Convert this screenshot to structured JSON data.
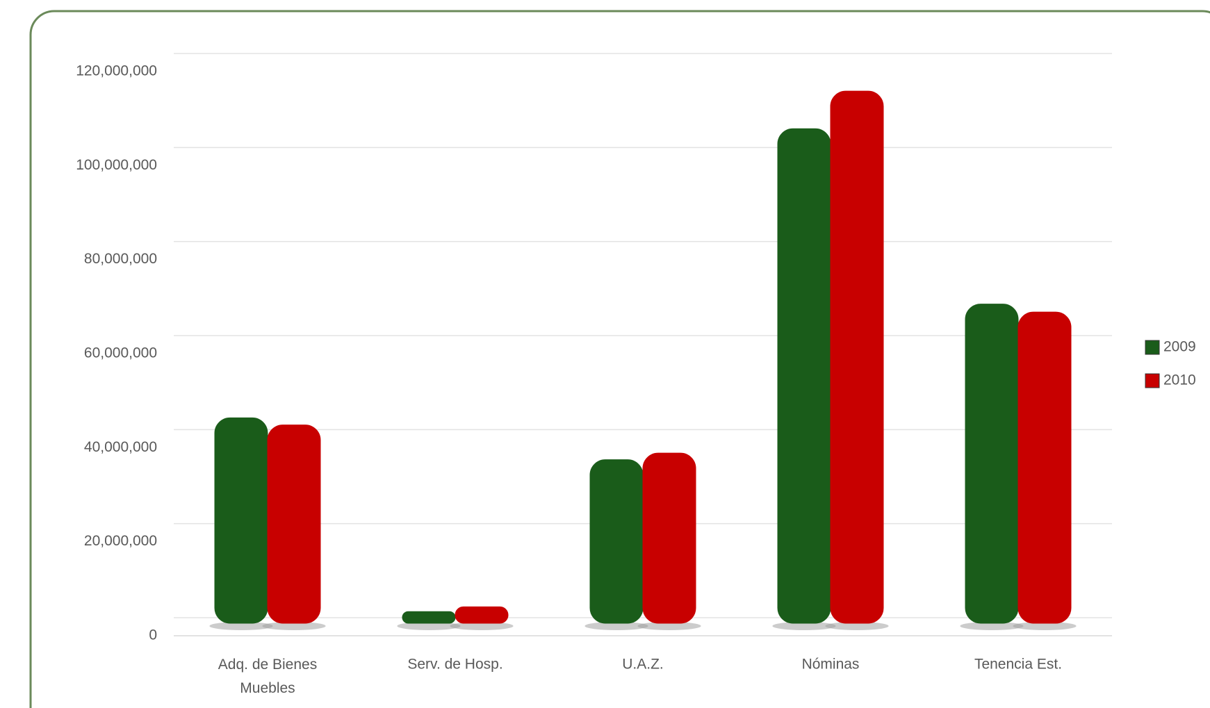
{
  "chart_data": {
    "type": "bar",
    "categories": [
      "Adq. de Bienes Muebles",
      "Serv. de Hosp.",
      "U.A.Z.",
      "Nóminas",
      "Tenencia Est."
    ],
    "series": [
      {
        "name": "2009",
        "color": "#1a5c1a",
        "values": [
          42500000,
          1300000,
          33600000,
          104000000,
          66700000
        ]
      },
      {
        "name": "2010",
        "color": "#c80000",
        "values": [
          41000000,
          2300000,
          35000000,
          112000000,
          65000000
        ]
      }
    ],
    "ylim": [
      0,
      120000000
    ],
    "yticks": [
      {
        "value": 0,
        "label": "0"
      },
      {
        "value": 20000000,
        "label": "20,000,000"
      },
      {
        "value": 40000000,
        "label": "40,000,000"
      },
      {
        "value": 60000000,
        "label": "60,000,000"
      },
      {
        "value": 80000000,
        "label": "80,000,000"
      },
      {
        "value": 100000000,
        "label": "100,000,000"
      },
      {
        "value": 120000000,
        "label": "120,000,000"
      }
    ],
    "grid": true,
    "legend": "right"
  }
}
